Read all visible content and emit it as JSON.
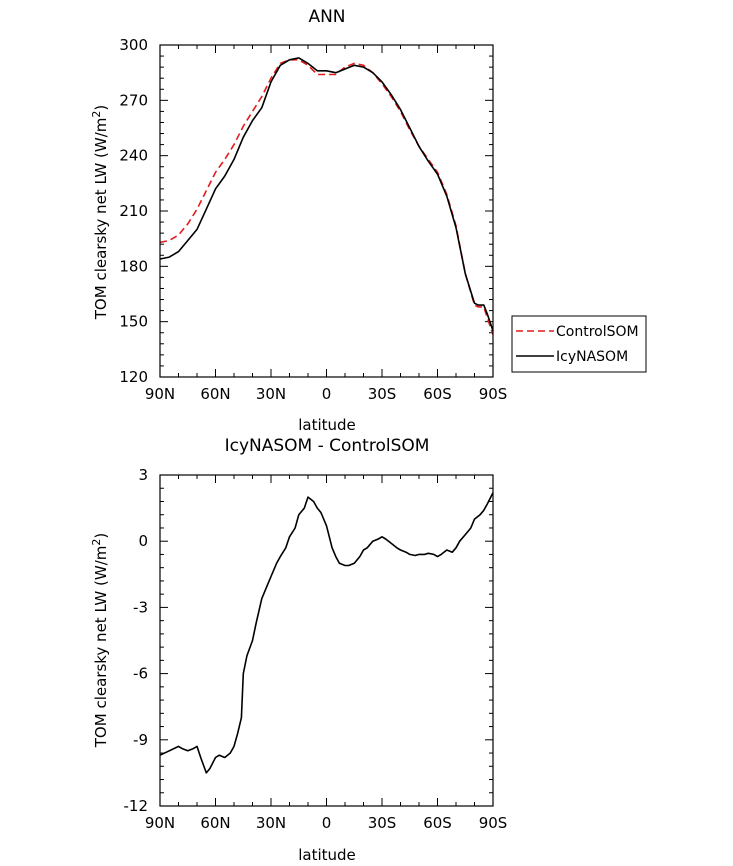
{
  "chart_data": [
    {
      "type": "line",
      "title": "ANN",
      "xlabel": "latitude",
      "ylabel": "TOM clearsky net LW (W/m",
      "ylabel_sup": "2",
      "ylabel_close": ")",
      "xlim": [
        90,
        -90
      ],
      "ylim": [
        120,
        300
      ],
      "xticks": [
        90,
        60,
        30,
        0,
        -30,
        -60,
        -90
      ],
      "xtick_labels": [
        "90N",
        "60N",
        "30N",
        "0",
        "30S",
        "60S",
        "90S"
      ],
      "yticks": [
        120,
        150,
        180,
        210,
        240,
        270,
        300
      ],
      "ytick_labels": [
        "120",
        "150",
        "180",
        "210",
        "240",
        "270",
        "300"
      ],
      "legend": "right",
      "series": [
        {
          "name": "ControlSOM",
          "color": "#e41a1c",
          "dash": "dashed",
          "x": [
            90,
            85,
            80,
            75,
            70,
            65,
            60,
            55,
            50,
            45,
            40,
            35,
            30,
            25,
            20,
            15,
            10,
            5,
            0,
            -5,
            -10,
            -15,
            -20,
            -25,
            -30,
            -35,
            -40,
            -45,
            -50,
            -55,
            -60,
            -65,
            -70,
            -75,
            -80,
            -82,
            -85,
            -87,
            -90
          ],
          "y": [
            193,
            194,
            197,
            203,
            211,
            221,
            231,
            238,
            246,
            256,
            264,
            272,
            282,
            290,
            292,
            292,
            289,
            284,
            284,
            284,
            288,
            290,
            289,
            285,
            279,
            272,
            264,
            254,
            245,
            238,
            231,
            219,
            202,
            176,
            159,
            158,
            158,
            152,
            143
          ]
        },
        {
          "name": "IcyNASOM",
          "color": "#000000",
          "dash": "solid",
          "x": [
            90,
            85,
            80,
            75,
            70,
            65,
            60,
            55,
            50,
            45,
            40,
            35,
            30,
            25,
            20,
            15,
            10,
            5,
            0,
            -5,
            -10,
            -15,
            -20,
            -25,
            -30,
            -35,
            -40,
            -45,
            -50,
            -55,
            -60,
            -65,
            -70,
            -75,
            -80,
            -82,
            -85,
            -87,
            -90
          ],
          "y": [
            184,
            185,
            188,
            194,
            200,
            211,
            222,
            229,
            238,
            250,
            259,
            266,
            280,
            289,
            292,
            293,
            290,
            286,
            286,
            285,
            287,
            289,
            288,
            285,
            280,
            273,
            265,
            255,
            245,
            237,
            230,
            218,
            201,
            176,
            160,
            159,
            159,
            154,
            145
          ]
        }
      ]
    },
    {
      "type": "line",
      "title": "IcyNASOM - ControlSOM",
      "xlabel": "latitude",
      "ylabel": "TOM clearsky net LW (W/m",
      "ylabel_sup": "2",
      "ylabel_close": ")",
      "xlim": [
        90,
        -90
      ],
      "ylim": [
        -12,
        3
      ],
      "xticks": [
        90,
        60,
        30,
        0,
        -30,
        -60,
        -90
      ],
      "xtick_labels": [
        "90N",
        "60N",
        "30N",
        "0",
        "30S",
        "60S",
        "90S"
      ],
      "yticks": [
        -12,
        -9,
        -6,
        -3,
        0,
        3
      ],
      "ytick_labels": [
        "-12",
        "-9",
        "-6",
        "-3",
        "0",
        "3"
      ],
      "series": [
        {
          "color": "#000000",
          "dash": "solid",
          "x": [
            90,
            85,
            80,
            78,
            75,
            72,
            70,
            68,
            65,
            63,
            60,
            58,
            55,
            52,
            50,
            48,
            46,
            45,
            43,
            40,
            38,
            35,
            32,
            30,
            27,
            25,
            22,
            20,
            17,
            15,
            12,
            10,
            7,
            5,
            3,
            0,
            -3,
            -5,
            -7,
            -10,
            -12,
            -15,
            -18,
            -20,
            -22,
            -25,
            -28,
            -30,
            -32,
            -35,
            -38,
            -40,
            -43,
            -45,
            -48,
            -50,
            -53,
            -55,
            -58,
            -60,
            -62,
            -65,
            -68,
            -70,
            -72,
            -75,
            -78,
            -80,
            -83,
            -85,
            -87,
            -90
          ],
          "y": [
            -9.7,
            -9.5,
            -9.3,
            -9.4,
            -9.5,
            -9.4,
            -9.3,
            -9.8,
            -10.5,
            -10.3,
            -9.8,
            -9.7,
            -9.8,
            -9.6,
            -9.3,
            -8.7,
            -8.0,
            -6.0,
            -5.2,
            -4.5,
            -3.7,
            -2.6,
            -2.0,
            -1.6,
            -1.0,
            -0.7,
            -0.3,
            0.2,
            0.6,
            1.2,
            1.5,
            2.0,
            1.8,
            1.5,
            1.3,
            0.7,
            -0.3,
            -0.7,
            -1.0,
            -1.1,
            -1.1,
            -1.0,
            -0.7,
            -0.4,
            -0.3,
            0.0,
            0.1,
            0.2,
            0.1,
            -0.1,
            -0.3,
            -0.4,
            -0.5,
            -0.6,
            -0.65,
            -0.6,
            -0.6,
            -0.55,
            -0.6,
            -0.7,
            -0.6,
            -0.4,
            -0.5,
            -0.3,
            0.0,
            0.3,
            0.6,
            1.0,
            1.2,
            1.4,
            1.7,
            2.2
          ]
        }
      ]
    }
  ]
}
